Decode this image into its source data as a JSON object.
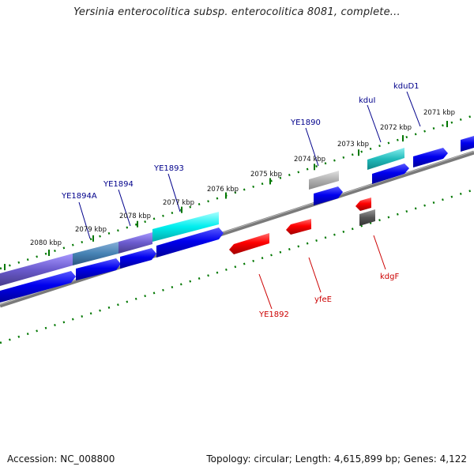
{
  "title": "Yersinia enterocolitica subsp. enterocolitica 8081, complete...",
  "footer": {
    "accession": "Accession: NC_008800",
    "summary": "Topology: circular; Length: 4,615,899 bp; Genes: 4,122"
  },
  "colors": {
    "forward_gene": "#0000ee",
    "reverse_gene": "#ff0000",
    "forward_label": "#00008b",
    "reverse_label": "#cc0000",
    "ticks": "#007700",
    "backbone": "#808080",
    "feature_cyan": "#00e5ee",
    "feature_purple": "#7b68ee",
    "feature_steel": "#4682b4",
    "feature_gray": "#b0b0b0",
    "feature_dark": "#555555"
  },
  "scale_labels": [
    "2080 kbp",
    "2079 kbp",
    "2078 kbp",
    "2077 kbp",
    "2076 kbp",
    "2075 kbp",
    "2074 kbp",
    "2073 kbp",
    "2072 kbp",
    "2071 kbp"
  ],
  "forward_genes": [
    "YE1894A",
    "YE1894",
    "YE1893",
    "YE1890",
    "kduI",
    "kduD1"
  ],
  "reverse_genes": [
    "YE1892",
    "yfeE",
    "kdgF"
  ]
}
